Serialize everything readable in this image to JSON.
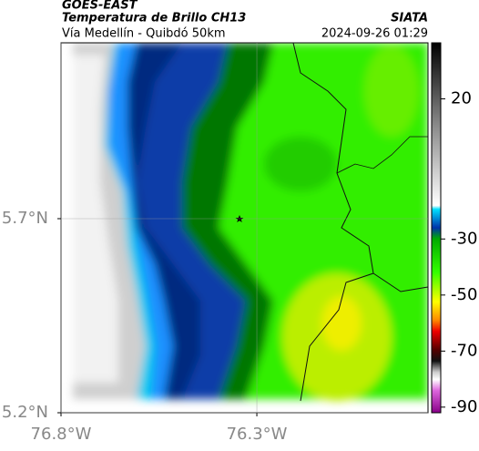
{
  "header": {
    "satellite": "GOES-EAST",
    "title": "Temperatura de Brillo CH13",
    "source": "SIATA",
    "subtitle": "Vía Medellín - Quibdó 50km",
    "datetime": "2024-09-26 01:29"
  },
  "map": {
    "xlim": [
      -76.8,
      -75.863
    ],
    "ylim": [
      5.2,
      6.153
    ],
    "xticks": [
      {
        "value": -76.8,
        "label": "76.8°W"
      },
      {
        "value": -76.3,
        "label": "76.3°W"
      }
    ],
    "yticks": [
      {
        "value": 5.2,
        "label": "5.2°N"
      },
      {
        "value": 5.7,
        "label": "5.7°N"
      }
    ]
  },
  "colorbar": {
    "lim": [
      -92,
      40
    ],
    "ticks": [
      20,
      -30,
      -50,
      -70,
      -90
    ]
  }
}
